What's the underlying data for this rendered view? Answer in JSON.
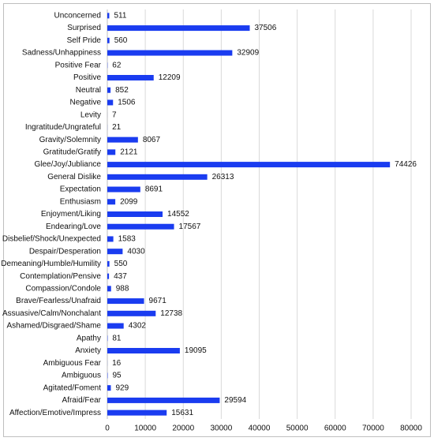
{
  "chart_data": {
    "type": "hbar",
    "categories": [
      "Unconcerned",
      "Surprised",
      "Self Pride",
      "Sadness/Unhappiness",
      "Positive Fear",
      "Positive",
      "Neutral",
      "Negative",
      "Levity",
      "Ingratitude/Ungrateful",
      "Gravity/Solemnity",
      "Gratitude/Gratify",
      "Glee/Joy/Jubliance",
      "General Dislike",
      "Expectation",
      "Enthusiasm",
      "Enjoyment/Liking",
      "Endearing/Love",
      "Disbelief/Shock/Unexpected",
      "Despair/Desperation",
      "Demeaning/Humble/Humility",
      "Contemplation/Pensive",
      "Compassion/Condole",
      "Brave/Fearless/Unafraid",
      "Assuasive/Calm/Nonchalant",
      "Ashamed/Disgraed/Shame",
      "Apathy",
      "Anxiety",
      "Ambiguous Fear",
      "Ambiguous",
      "Agitated/Foment",
      "Afraid/Fear",
      "Affection/Emotive/Impress"
    ],
    "values": [
      511,
      37506,
      560,
      32909,
      62,
      12209,
      852,
      1506,
      7,
      21,
      8067,
      2121,
      74426,
      26313,
      8691,
      2099,
      14552,
      17567,
      1583,
      4030,
      550,
      437,
      988,
      9671,
      12738,
      4302,
      81,
      19095,
      16,
      95,
      929,
      29594,
      15631
    ],
    "color": "#1a3cf0",
    "xlim": [
      0,
      80000
    ],
    "xticks": [
      0,
      10000,
      20000,
      30000,
      40000,
      50000,
      60000,
      70000,
      80000
    ],
    "grid": true
  }
}
